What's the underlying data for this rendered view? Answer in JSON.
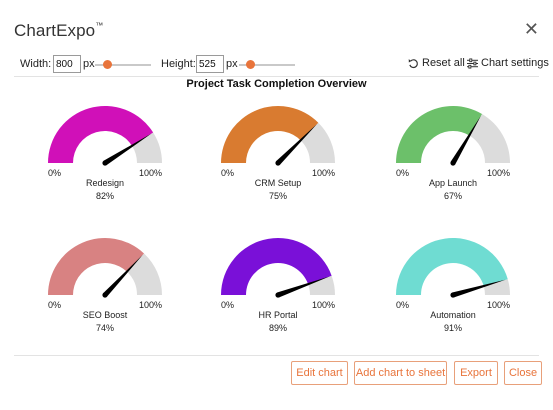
{
  "app": {
    "title": "ChartExpo",
    "trademark": "™",
    "close_icon": "close-icon"
  },
  "toolbar": {
    "width_label": "Width:",
    "width_value": "800",
    "width_unit": "px",
    "height_label": "Height:",
    "height_value": "525",
    "height_unit": "px",
    "reset_label": "Reset all",
    "settings_label": "Chart settings"
  },
  "colors": {
    "accent": "#e8743b",
    "track": "#dcdcdc",
    "needle": "#000000"
  },
  "chart_data": {
    "type": "gauge",
    "title": "Project Task Completion Overview",
    "min_label": "0%",
    "max_label": "100%",
    "gauges": [
      {
        "name": "Redesign",
        "value": 82,
        "value_label": "82%",
        "color": "#d010b8"
      },
      {
        "name": "CRM Setup",
        "value": 75,
        "value_label": "75%",
        "color": "#d97b30"
      },
      {
        "name": "App Launch",
        "value": 67,
        "value_label": "67%",
        "color": "#6cc06a"
      },
      {
        "name": "SEO Boost",
        "value": 74,
        "value_label": "74%",
        "color": "#d88282"
      },
      {
        "name": "HR Portal",
        "value": 89,
        "value_label": "89%",
        "color": "#7a10d8"
      },
      {
        "name": "Automation",
        "value": 91,
        "value_label": "91%",
        "color": "#6fdcd2"
      }
    ]
  },
  "footer": {
    "edit_label": "Edit chart",
    "add_label": "Add chart to sheet",
    "export_label": "Export",
    "close_label": "Close"
  }
}
